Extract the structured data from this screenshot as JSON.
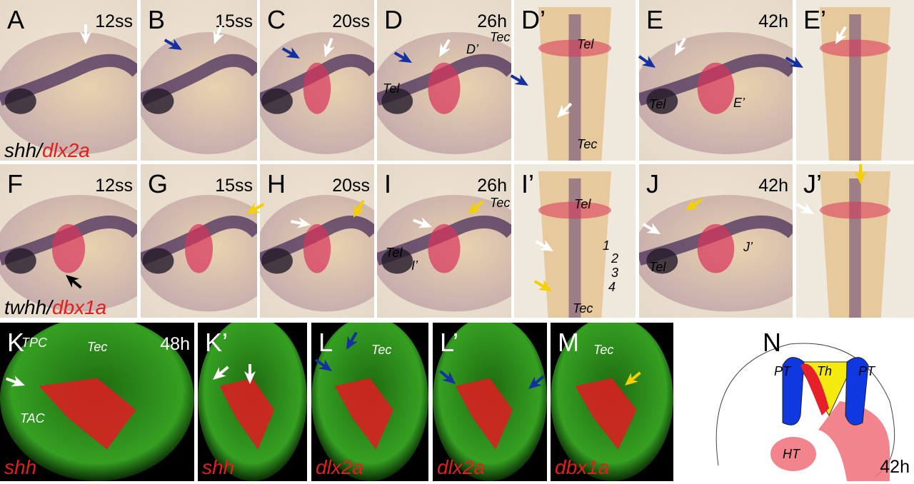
{
  "panels": [
    {
      "label": "A",
      "stage": "12ss"
    },
    {
      "label": "B",
      "stage": "15ss"
    },
    {
      "label": "C",
      "stage": "20ss"
    },
    {
      "label": "D",
      "stage": "26h",
      "notes": [
        "Tel",
        "D’",
        "Tec"
      ]
    },
    {
      "label": "D’",
      "notes": [
        "Tel",
        "Tec"
      ]
    },
    {
      "label": "E",
      "stage": "42h",
      "notes": [
        "Tel",
        "E’"
      ]
    },
    {
      "label": "E’"
    },
    {
      "label": "F",
      "stage": "12ss"
    },
    {
      "label": "G",
      "stage": "15ss"
    },
    {
      "label": "H",
      "stage": "20ss"
    },
    {
      "label": "I",
      "stage": "26h",
      "notes": [
        "Tel",
        "I’",
        "Tec"
      ]
    },
    {
      "label": "I’",
      "notes": [
        "Tel",
        "1",
        "2",
        "3",
        "4",
        "Tec"
      ]
    },
    {
      "label": "J",
      "stage": "42h",
      "notes": [
        "Tel",
        "J’"
      ]
    },
    {
      "label": "J’"
    },
    {
      "label": "K",
      "stage": "48h",
      "notes": [
        "TPC",
        "Tec",
        "TAC"
      ],
      "gene": "shh"
    },
    {
      "label": "K’",
      "gene": "shh"
    },
    {
      "label": "L",
      "notes": [
        "Tec"
      ],
      "gene": "dlx2a"
    },
    {
      "label": "L’",
      "gene": "dlx2a"
    },
    {
      "label": "M",
      "notes": [
        "Tec"
      ],
      "gene": "dbx1a"
    },
    {
      "label": "N",
      "stage": "42h",
      "notes": [
        "PT",
        "Th",
        "PT",
        "HT"
      ]
    }
  ],
  "row_labels": [
    [
      "shh",
      "/",
      "dlx2a"
    ],
    [
      "twhh",
      "/",
      "dbx1a"
    ]
  ]
}
